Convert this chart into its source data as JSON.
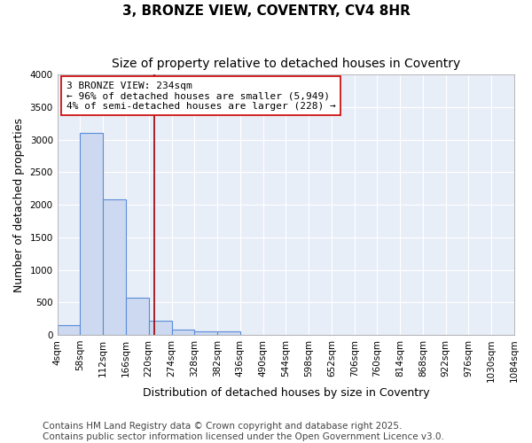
{
  "title": "3, BRONZE VIEW, COVENTRY, CV4 8HR",
  "subtitle": "Size of property relative to detached houses in Coventry",
  "xlabel": "Distribution of detached houses by size in Coventry",
  "ylabel": "Number of detached properties",
  "annotation_line1": "3 BRONZE VIEW: 234sqm",
  "annotation_line2": "← 96% of detached houses are smaller (5,949)",
  "annotation_line3": "4% of semi-detached houses are larger (228) →",
  "property_size_sqm": 234,
  "bin_edges": [
    4,
    58,
    112,
    166,
    220,
    274,
    328,
    382,
    436,
    490,
    544,
    598,
    652,
    706,
    760,
    814,
    868,
    922,
    976,
    1030,
    1084
  ],
  "bin_counts": [
    150,
    3100,
    2090,
    575,
    215,
    80,
    60,
    50,
    0,
    0,
    0,
    0,
    0,
    0,
    0,
    0,
    0,
    0,
    0,
    0
  ],
  "bar_color": "#ccd9f0",
  "bar_edge_color": "#5b8dd9",
  "bar_linewidth": 0.8,
  "red_line_x": 234,
  "ylim": [
    0,
    4000
  ],
  "yticks": [
    0,
    500,
    1000,
    1500,
    2000,
    2500,
    3000,
    3500,
    4000
  ],
  "fig_background": "#ffffff",
  "plot_background": "#e8eef8",
  "grid_color": "#ffffff",
  "title_fontsize": 11,
  "subtitle_fontsize": 10,
  "axis_label_fontsize": 9,
  "tick_fontsize": 7.5,
  "annotation_fontsize": 8,
  "footer_text": "Contains HM Land Registry data © Crown copyright and database right 2025.\nContains public sector information licensed under the Open Government Licence v3.0.",
  "footer_fontsize": 7.5
}
